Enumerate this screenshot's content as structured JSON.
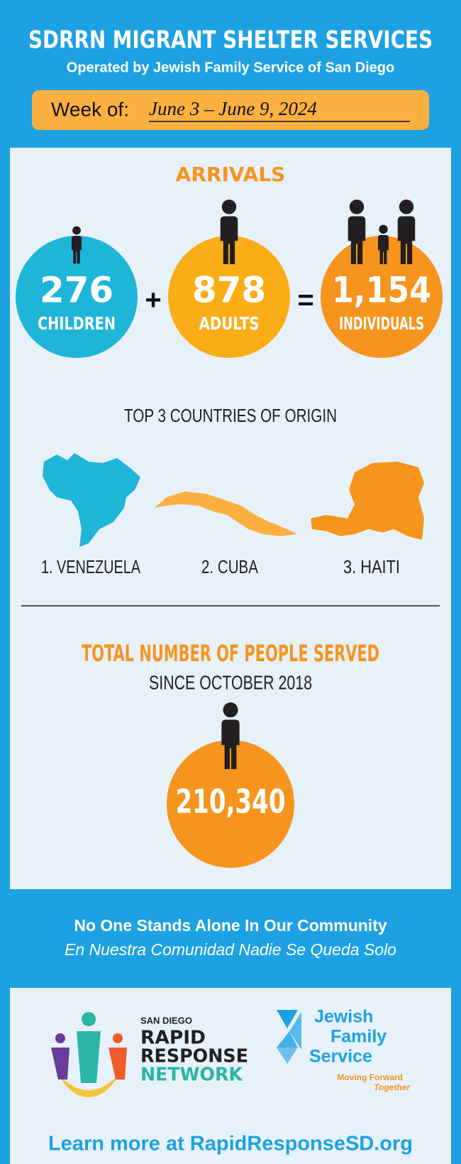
{
  "header": {
    "title": "SDRRN MIGRANT SHELTER SERVICES",
    "subtitle": "Operated by Jewish Family Service of San Diego",
    "week_label": "Week of:",
    "week": "June 3 – June 9, 2024"
  },
  "arrivals": {
    "title": "ARRIVALS",
    "items": [
      {
        "value": "276",
        "label": "CHILDREN"
      },
      {
        "value": "878",
        "label": "ADULTS"
      },
      {
        "value": "1,154",
        "label": "INDIVIDUALS"
      }
    ],
    "operators": [
      "+",
      "="
    ]
  },
  "countries": {
    "title": "TOP 3 COUNTRIES OF ORIGIN",
    "items": [
      "1. VENEZUELA",
      "2. CUBA",
      "3. HAITI"
    ]
  },
  "total": {
    "title": "TOTAL NUMBER OF PEOPLE SERVED",
    "subtitle": "SINCE OCTOBER 2018",
    "value": "210,340"
  },
  "footer": {
    "tagline": "No One Stands Alone In Our Community",
    "tagline_es": "En Nuestra Comunidad Nadie Se Queda Solo",
    "sdrrn_logo": [
      "SAN DIEGO",
      "RAPID",
      "RESPONSE",
      "NETWORK"
    ],
    "jfs_logo": [
      "Jewish",
      "Family",
      "Service"
    ],
    "jfs_slogan": [
      "Moving Forward",
      "Together"
    ],
    "link": "Learn more at RapidResponseSD.org"
  }
}
